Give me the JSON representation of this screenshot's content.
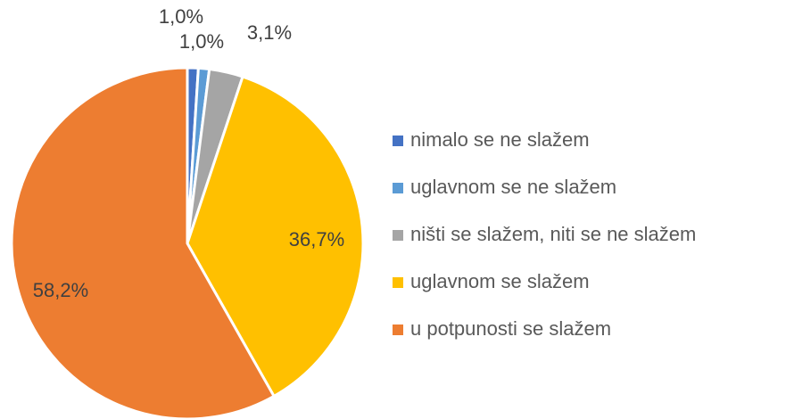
{
  "chart_data": {
    "type": "pie",
    "categories": [
      "nimalo se ne slažem",
      "uglavnom se ne slažem",
      "ništi se slažem, niti se ne slažem",
      "uglavnom se slažem",
      "u potpunosti se slažem"
    ],
    "values": [
      1.0,
      1.0,
      3.1,
      36.7,
      58.2
    ],
    "value_labels": [
      "1,0%",
      "1,0%",
      "3,1%",
      "36,7%",
      "58,2%"
    ],
    "colors": [
      "#4472c4",
      "#5b9bd5",
      "#a5a5a5",
      "#ffc000",
      "#ed7d31"
    ],
    "legend": "right"
  }
}
